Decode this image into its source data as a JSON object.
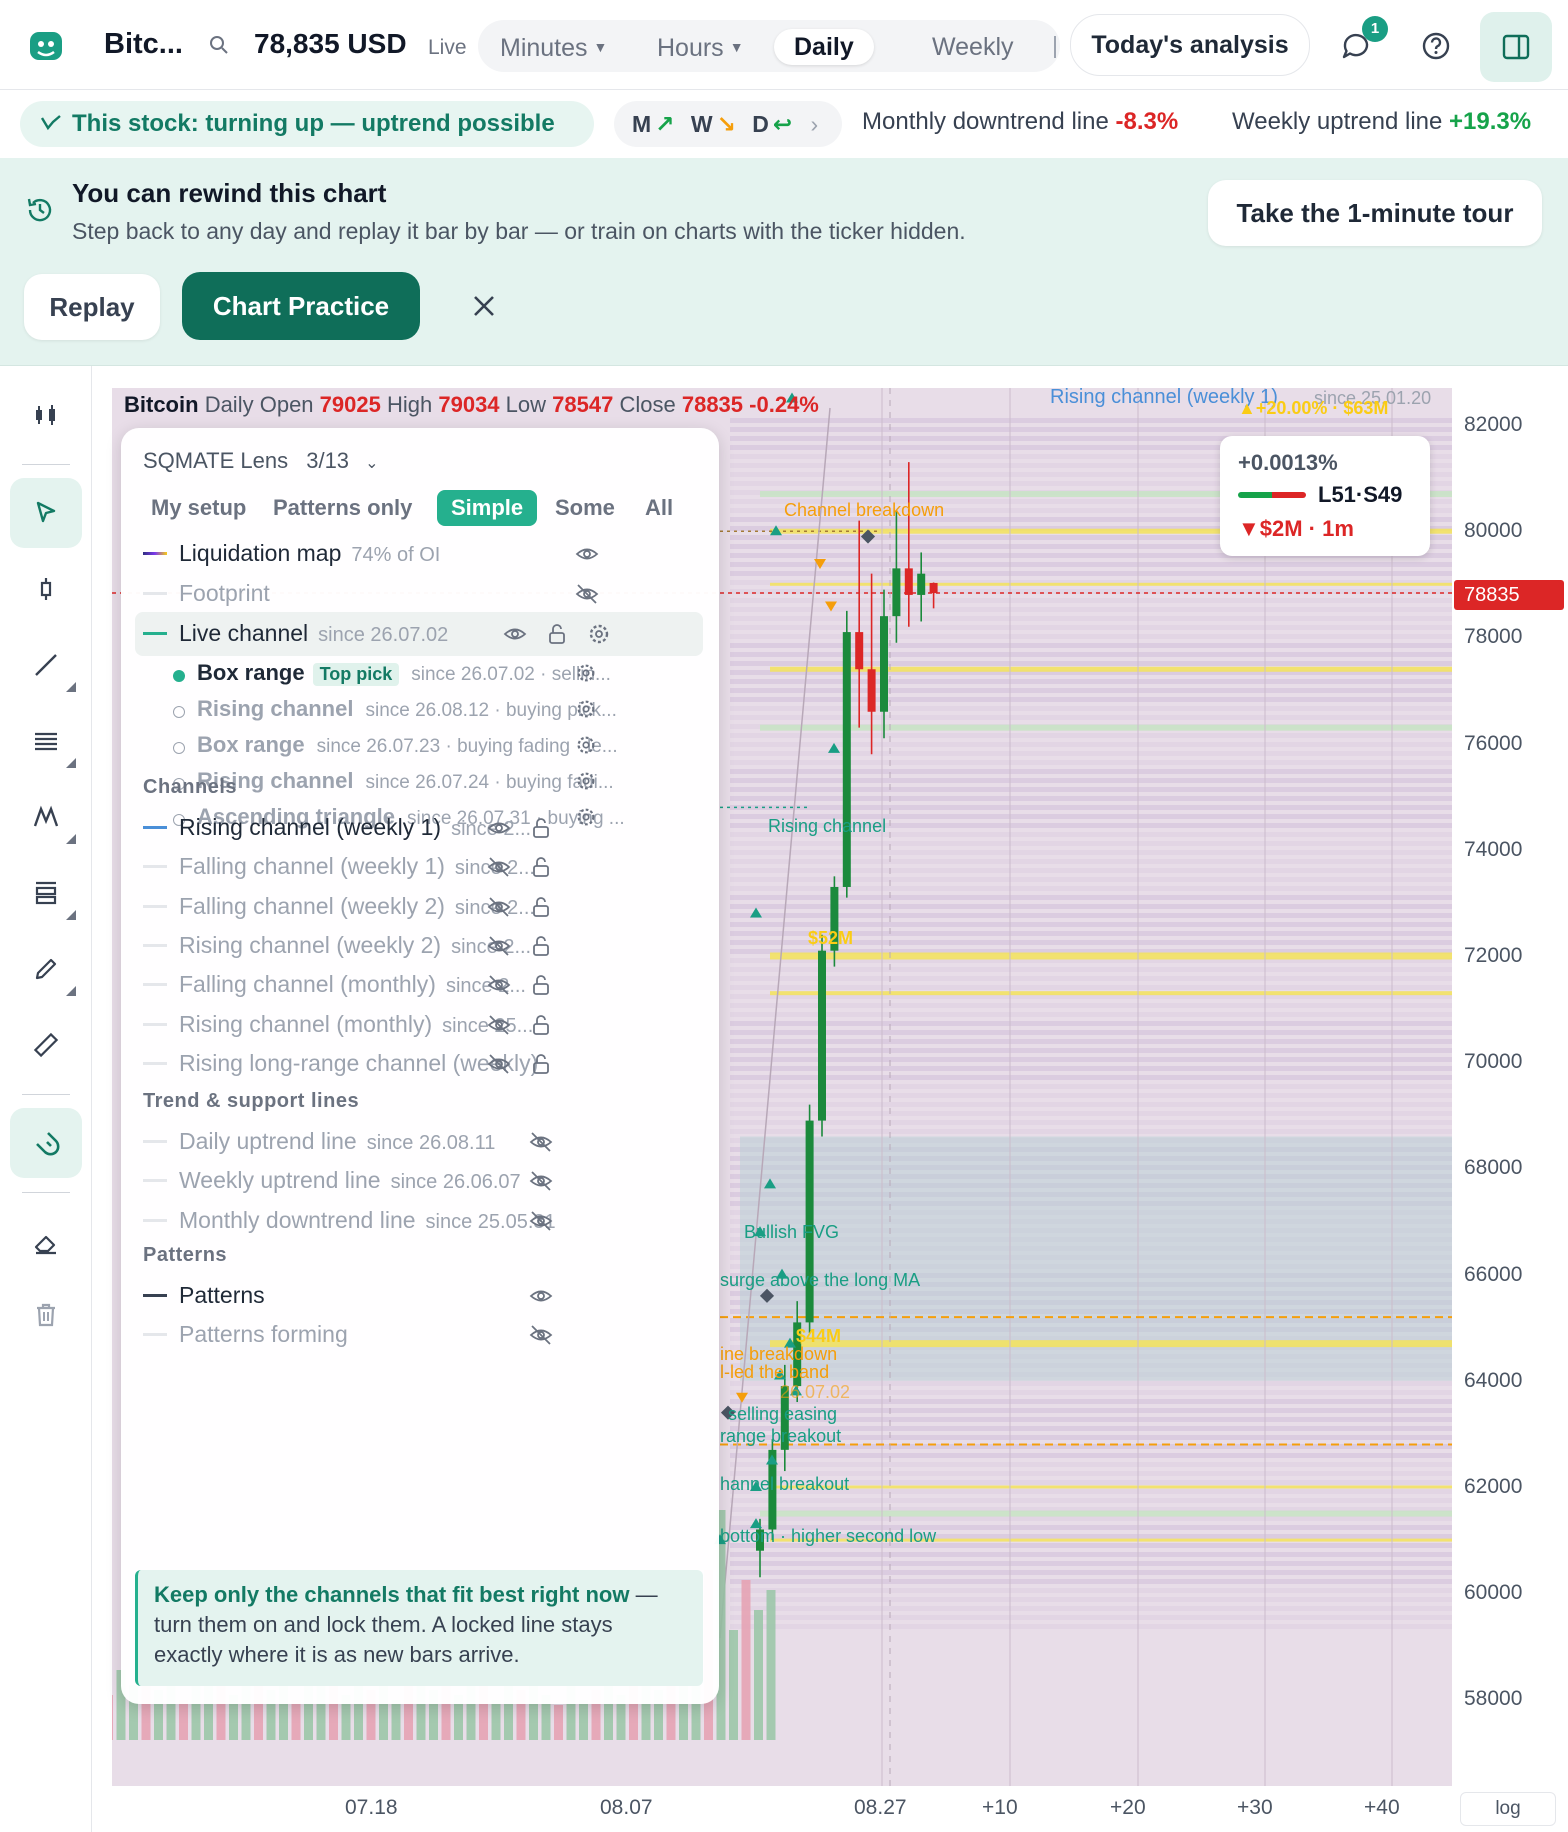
{
  "header": {
    "ticker": "Bitc...",
    "price": "78,835 USD",
    "live": "Live",
    "timeframes": [
      {
        "label": "Minutes",
        "dropdown": true,
        "active": false
      },
      {
        "label": "Hours",
        "dropdown": true,
        "active": false
      },
      {
        "label": "Daily",
        "dropdown": false,
        "active": true
      },
      {
        "label": "Weekly",
        "dropdown": false,
        "active": false
      }
    ],
    "analysis_button": "Today's analysis",
    "chat_badge": "1"
  },
  "status": {
    "pill": "This stock: turning up — uptrend possible",
    "mwd": {
      "m": "M",
      "w": "W",
      "d": "D"
    },
    "monthly_label": "Monthly downtrend line",
    "monthly_value": "-8.3%",
    "weekly_label": "Weekly uptrend line",
    "weekly_value": "+19.3%"
  },
  "rewind": {
    "title": "You can rewind this chart",
    "subtitle": "Step back to any day and replay it bar by bar — or train on charts with the ticker hidden.",
    "tour_button": "Take the 1-minute tour",
    "replay_button": "Replay",
    "practice_button": "Chart Practice"
  },
  "chart": {
    "ohlc": {
      "name": "Bitcoin",
      "interval": "Daily",
      "open_label": "Open",
      "open": "79025",
      "high_label": "High",
      "high": "79034",
      "low_label": "Low",
      "low": "78547",
      "close_label": "Close",
      "close": "78835",
      "change": "-0.24%"
    },
    "current_price_tag": "78835",
    "log_button": "log",
    "annotations": {
      "weekly_channel": "Rising channel (weekly 1)",
      "weekly_since": "since 25.01.20",
      "liq_top1": "▲+20.00% · $63M",
      "channel_breakdown": "Channel breakdown",
      "rising_channel": "Rising channel",
      "liq_52": "$52M",
      "bullish_fvg": "Bullish FVG",
      "surge": "surge above the long MA",
      "liq_44": "$44M",
      "line_breakdown": "ine breakdown",
      "led_band": "l-led the band",
      "date_0702": "26.07.02",
      "selling_easing": "selling easing",
      "range_breakout": "range breakout",
      "channel_breakout": "hannel breakout",
      "higher_low": "bottom · higher second low"
    },
    "liquidation_box": {
      "change": "+0.0013%",
      "ratio": "L51·S49",
      "flow": "▼$2M · 1m"
    }
  },
  "chart_data": {
    "type": "candlestick",
    "y_ticks": [
      "82000",
      "80000",
      "78000",
      "76000",
      "74000",
      "72000",
      "70000",
      "68000",
      "66000",
      "64000",
      "62000",
      "60000",
      "58000"
    ],
    "x_ticks": [
      "07.18",
      "08.07",
      "08.27",
      "+10",
      "+20",
      "+30",
      "+40"
    ],
    "scale": "log",
    "candles": [
      {
        "o": 60800,
        "h": 61400,
        "l": 60300,
        "c": 61200
      },
      {
        "o": 61200,
        "h": 62900,
        "l": 61000,
        "c": 62700
      },
      {
        "o": 62700,
        "h": 64300,
        "l": 62300,
        "c": 63900
      },
      {
        "o": 63900,
        "h": 65500,
        "l": 63600,
        "c": 65100
      },
      {
        "o": 65100,
        "h": 69200,
        "l": 64900,
        "c": 68900
      },
      {
        "o": 68900,
        "h": 72400,
        "l": 68600,
        "c": 72100
      },
      {
        "o": 72100,
        "h": 73500,
        "l": 71800,
        "c": 73300
      },
      {
        "o": 73300,
        "h": 78500,
        "l": 73100,
        "c": 78100
      },
      {
        "o": 78100,
        "h": 80200,
        "l": 76300,
        "c": 77400
      },
      {
        "o": 77400,
        "h": 79200,
        "l": 75800,
        "c": 76600
      },
      {
        "o": 76600,
        "h": 78900,
        "l": 76100,
        "c": 78400
      },
      {
        "o": 78400,
        "h": 80400,
        "l": 77900,
        "c": 79300
      },
      {
        "o": 79300,
        "h": 81300,
        "l": 78200,
        "c": 78800
      },
      {
        "o": 78800,
        "h": 79600,
        "l": 78300,
        "c": 79200
      },
      {
        "o": 79025,
        "h": 79034,
        "l": 78547,
        "c": 78835
      }
    ]
  },
  "lens": {
    "title": "SQMATE Lens",
    "count": "3/13",
    "modes": [
      {
        "label": "My setup",
        "active": false
      },
      {
        "label": "Patterns only",
        "active": false
      },
      {
        "label": "Simple",
        "active": true
      },
      {
        "label": "Some",
        "active": false
      },
      {
        "label": "All",
        "active": false
      }
    ],
    "liquidation_map": {
      "label": "Liquidation map",
      "meta": "74% of OI"
    },
    "footprint": {
      "label": "Footprint"
    },
    "live_channel": {
      "label": "Live channel",
      "since": "since 26.07.02"
    },
    "live_sub": [
      {
        "label": "Box range",
        "badge": "Top pick",
        "meta": "since 26.07.02 · sellin...",
        "on": true
      },
      {
        "label": "Rising channel",
        "badge": "",
        "meta": "since 26.08.12 · buying pick...",
        "on": false
      },
      {
        "label": "Box range",
        "badge": "",
        "meta": "since 26.07.23 · buying fading · le...",
        "on": false
      },
      {
        "label": "Rising channel",
        "badge": "",
        "meta": "since 26.07.24 · buying fadi...",
        "on": false
      },
      {
        "label": "Ascending triangle",
        "badge": "",
        "meta": "since 26.07.31 · buying ...",
        "on": false
      }
    ],
    "channels_title": "Channels",
    "channels": [
      {
        "label": "Rising channel (weekly 1)",
        "since": "since 2...",
        "visible": true,
        "color": "#4a8fd8"
      },
      {
        "label": "Falling channel (weekly 1)",
        "since": "since 2...",
        "visible": false,
        "color": "#e5e7eb"
      },
      {
        "label": "Falling channel (weekly 2)",
        "since": "since 2...",
        "visible": false,
        "color": "#e5e7eb"
      },
      {
        "label": "Rising channel (weekly 2)",
        "since": "since 2...",
        "visible": false,
        "color": "#e5e7eb"
      },
      {
        "label": "Falling channel (monthly)",
        "since": "since 2...",
        "visible": false,
        "color": "#e5e7eb"
      },
      {
        "label": "Rising channel (monthly)",
        "since": "since 25...",
        "visible": false,
        "color": "#e5e7eb"
      },
      {
        "label": "Rising long-range channel (weekly)",
        "since": "",
        "visible": false,
        "color": "#e5e7eb"
      }
    ],
    "trend_title": "Trend & support lines",
    "trend": [
      {
        "label": "Daily uptrend line",
        "since": "since 26.08.11"
      },
      {
        "label": "Weekly uptrend line",
        "since": "since 26.06.07"
      },
      {
        "label": "Monthly downtrend line",
        "since": "since 25.05.31"
      }
    ],
    "patterns_title": "Patterns",
    "patterns": [
      {
        "label": "Patterns",
        "visible": true
      },
      {
        "label": "Patterns forming",
        "visible": false
      }
    ],
    "tip_bold": "Keep only the channels that fit best right now",
    "tip_rest": " — turn them on and lock them. A locked line stays exactly where it is as new bars arrive."
  },
  "colors": {
    "accent": "#0f6e59",
    "accent_light": "#e4f3ef",
    "up": "#16a34a",
    "down": "#dc2626",
    "chart_bg": "#e8dde8"
  }
}
